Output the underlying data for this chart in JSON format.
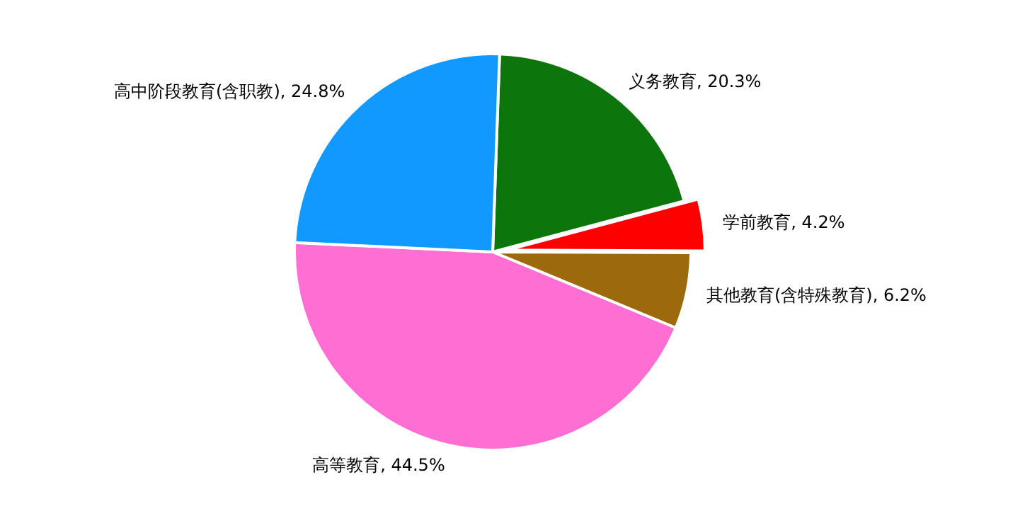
{
  "chart_data": {
    "type": "pie",
    "categories": [
      "义务教育",
      "学前教育",
      "其他教育(含特殊教育)",
      "高等教育",
      "高中阶段教育(含职教)"
    ],
    "values": [
      20.3,
      4.2,
      6.2,
      44.5,
      24.8
    ],
    "value_labels": [
      "20.3%",
      "4.2%",
      "6.2%",
      "44.5%",
      "24.8%"
    ],
    "colors": [
      "#0c760c",
      "#ff0000",
      "#9c6a0c",
      "#ff6ed2",
      "#1199ff"
    ],
    "legend": false
  }
}
